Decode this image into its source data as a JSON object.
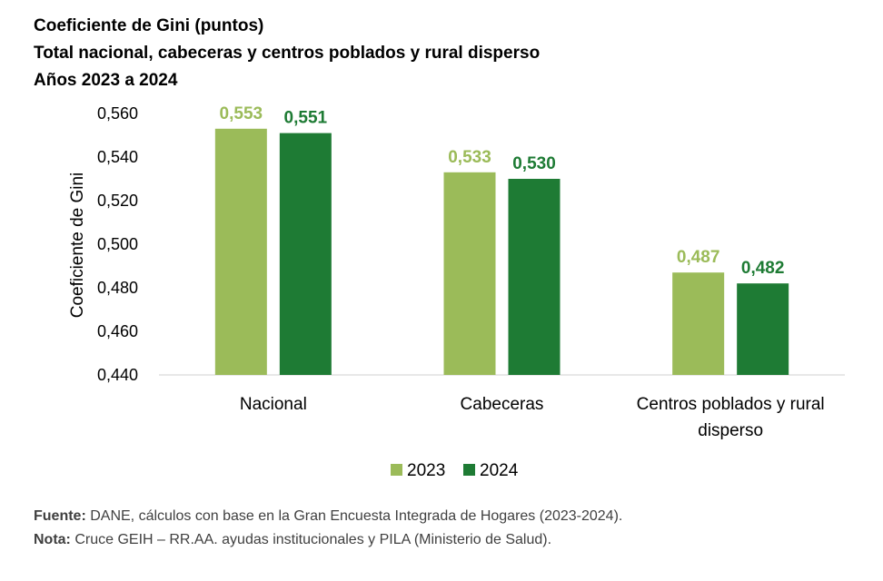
{
  "title": {
    "line1": "Coeficiente de Gini (puntos)",
    "line2": "Total nacional, cabeceras y centros poblados y rural disperso",
    "line3": "Años 2023 a 2024"
  },
  "chart_data": {
    "type": "bar",
    "categories": [
      "Nacional",
      "Cabeceras",
      "Centros poblados y rural disperso"
    ],
    "category_lines": [
      [
        "Nacional"
      ],
      [
        "Cabeceras"
      ],
      [
        "Centros poblados y rural",
        "disperso"
      ]
    ],
    "series": [
      {
        "name": "2023",
        "values": [
          0.553,
          0.533,
          0.487
        ],
        "labels": [
          "0,553",
          "0,533",
          "0,487"
        ],
        "color": "#9BBB59"
      },
      {
        "name": "2024",
        "values": [
          0.551,
          0.53,
          0.482
        ],
        "labels": [
          "0,551",
          "0,530",
          "0,482"
        ],
        "color": "#1E7B34"
      }
    ],
    "ylabel": "Coeficiente de Gini",
    "ylim": [
      0.44,
      0.56
    ],
    "yticks": [
      0.44,
      0.46,
      0.48,
      0.5,
      0.52,
      0.54,
      0.56
    ],
    "ytick_labels": [
      "0,440",
      "0,460",
      "0,480",
      "0,500",
      "0,520",
      "0,540",
      "0,560"
    ],
    "legend_position": "bottom",
    "grid": false
  },
  "footnotes": {
    "source_label": "Fuente:",
    "source_text": " DANE, cálculos con base en la Gran Encuesta Integrada de Hogares (2023-2024).",
    "note_label": "Nota:",
    "note_text": " Cruce GEIH – RR.AA. ayudas institucionales y PILA (Ministerio de Salud)."
  }
}
